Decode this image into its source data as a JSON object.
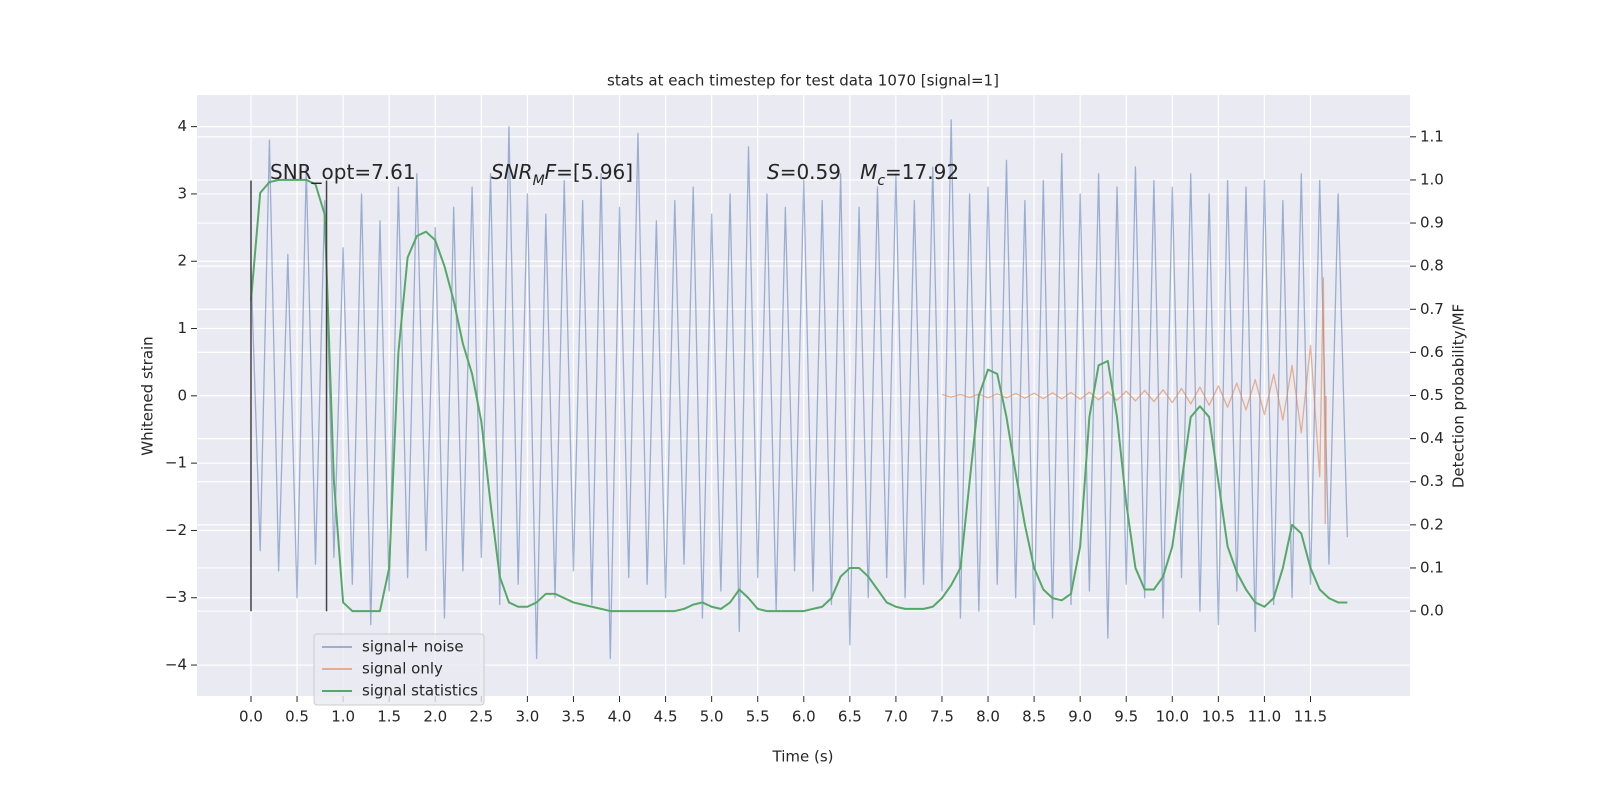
{
  "chart_data": {
    "type": "line",
    "title": "stats at each timestep for test data 1070 [signal=1]",
    "xlabel": "Time (s)",
    "ylabel": "Whitened strain",
    "y2label": "Detection probability/MF",
    "xlim": [
      -0.586,
      12.58
    ],
    "ylim": [
      -4.46,
      4.47
    ],
    "y2lim": [
      -0.197,
      1.197
    ],
    "xticks": [
      {
        "value": 0,
        "label": "0.0"
      },
      0.5,
      {
        "value": 1,
        "label": "1.0"
      },
      1.5,
      {
        "value": 2,
        "label": "2.0"
      },
      2.5,
      {
        "value": 3,
        "label": "3.0"
      },
      3.5,
      {
        "value": 4,
        "label": "4.0"
      },
      4.5,
      {
        "value": 5,
        "label": "5.0"
      },
      5.5,
      {
        "value": 6,
        "label": "6.0"
      },
      6.5,
      {
        "value": 7,
        "label": "7.0"
      },
      7.5,
      {
        "value": 8,
        "label": "8.0"
      },
      8.5,
      {
        "value": 9,
        "label": "9.0"
      },
      9.5,
      {
        "value": 10,
        "label": "10.0"
      },
      10.5,
      {
        "value": 11,
        "label": "11.0"
      },
      11.5
    ],
    "yticks": [
      {
        "value": -4,
        "label": "−4"
      },
      {
        "value": -3,
        "label": "−3"
      },
      {
        "value": -2,
        "label": "−2"
      },
      {
        "value": -1,
        "label": "−1"
      },
      0,
      1,
      2,
      3,
      4
    ],
    "y2ticks": [
      {
        "value": 0,
        "label": "0.0"
      },
      0.1,
      0.2,
      0.3,
      0.4,
      0.5,
      0.6,
      0.7,
      0.8,
      0.9,
      {
        "value": 1,
        "label": "1.0"
      },
      1.1
    ],
    "grid": true,
    "series": [
      {
        "name": "signal+ noise",
        "color": "#4c72b0",
        "opacity": 0.5,
        "x": [
          0.0,
          0.1,
          0.2,
          0.3,
          0.4,
          0.5,
          0.6,
          0.7,
          0.8,
          0.9,
          1.0,
          1.1,
          1.2,
          1.3,
          1.4,
          1.5,
          1.6,
          1.7,
          1.8,
          1.9,
          2.0,
          2.1,
          2.2,
          2.3,
          2.4,
          2.5,
          2.6,
          2.7,
          2.8,
          2.9,
          3.0,
          3.1,
          3.2,
          3.3,
          3.4,
          3.5,
          3.6,
          3.7,
          3.8,
          3.9,
          4.0,
          4.1,
          4.2,
          4.3,
          4.4,
          4.5,
          4.6,
          4.7,
          4.8,
          4.9,
          5.0,
          5.1,
          5.2,
          5.3,
          5.4,
          5.5,
          5.6,
          5.7,
          5.8,
          5.9,
          6.0,
          6.1,
          6.2,
          6.3,
          6.4,
          6.5,
          6.6,
          6.7,
          6.8,
          6.9,
          7.0,
          7.1,
          7.2,
          7.3,
          7.4,
          7.5,
          7.6,
          7.7,
          7.8,
          7.9,
          8.0,
          8.1,
          8.2,
          8.3,
          8.4,
          8.5,
          8.6,
          8.7,
          8.8,
          8.9,
          9.0,
          9.1,
          9.2,
          9.3,
          9.4,
          9.5,
          9.6,
          9.7,
          9.8,
          9.9,
          10.0,
          10.1,
          10.2,
          10.3,
          10.4,
          10.5,
          10.6,
          10.7,
          10.8,
          10.9,
          11.0,
          11.1,
          11.2,
          11.3,
          11.4,
          11.5,
          11.6,
          11.7,
          11.8,
          11.9
        ],
        "values": [
          1.9,
          -2.3,
          3.8,
          -2.6,
          2.1,
          -3.0,
          3.4,
          -2.5,
          2.9,
          -2.4,
          2.2,
          -2.8,
          3.0,
          -3.4,
          2.6,
          -2.9,
          3.1,
          -2.7,
          3.3,
          -2.3,
          2.5,
          -3.3,
          2.8,
          -2.6,
          3.1,
          -2.4,
          3.3,
          -3.1,
          4.0,
          -2.8,
          3.0,
          -3.9,
          2.7,
          -3.0,
          3.2,
          -2.6,
          2.9,
          -3.1,
          3.3,
          -3.9,
          2.8,
          -2.7,
          3.9,
          -2.8,
          2.6,
          -3.0,
          2.9,
          -2.5,
          3.1,
          -3.3,
          2.7,
          -2.9,
          3.0,
          -3.5,
          3.7,
          -2.7,
          3.0,
          -3.2,
          2.8,
          -2.6,
          3.2,
          -2.9,
          2.9,
          -3.1,
          3.3,
          -3.7,
          2.8,
          -3.0,
          3.1,
          -2.7,
          3.3,
          -3.0,
          2.9,
          -2.8,
          3.4,
          -2.9,
          4.1,
          -3.3,
          3.0,
          -3.2,
          3.1,
          -2.8,
          3.5,
          -3.0,
          2.9,
          -3.4,
          3.2,
          -3.3,
          3.6,
          -3.1,
          3.0,
          -2.9,
          3.3,
          -3.6,
          3.1,
          -2.8,
          3.4,
          -3.0,
          3.2,
          -3.3,
          3.1,
          -2.7,
          3.3,
          -3.2,
          3.0,
          -3.4,
          3.2,
          -2.9,
          3.1,
          -3.5,
          3.2,
          -3.1,
          2.9,
          -3.0,
          3.3,
          -2.8,
          3.2,
          -2.5,
          3.0,
          -2.1
        ]
      },
      {
        "name": "signal only",
        "color": "#dd8452",
        "opacity": 0.6,
        "x": [
          7.5,
          7.6,
          7.7,
          7.8,
          7.9,
          8.0,
          8.1,
          8.2,
          8.3,
          8.4,
          8.5,
          8.6,
          8.7,
          8.8,
          8.9,
          9.0,
          9.1,
          9.2,
          9.3,
          9.4,
          9.5,
          9.6,
          9.7,
          9.8,
          9.9,
          10.0,
          10.1,
          10.2,
          10.3,
          10.4,
          10.5,
          10.6,
          10.7,
          10.8,
          10.9,
          11.0,
          11.1,
          11.2,
          11.3,
          11.4,
          11.5,
          11.6,
          11.64,
          11.66,
          11.67
        ],
        "values": [
          0.02,
          -0.02,
          0.02,
          -0.025,
          0.025,
          -0.03,
          0.03,
          -0.03,
          0.035,
          -0.035,
          0.04,
          -0.04,
          0.045,
          -0.045,
          0.05,
          -0.05,
          0.055,
          -0.06,
          0.06,
          -0.065,
          0.07,
          -0.075,
          0.08,
          -0.085,
          0.09,
          -0.1,
          0.11,
          -0.12,
          0.13,
          -0.14,
          0.15,
          -0.17,
          0.19,
          -0.21,
          0.24,
          -0.28,
          0.32,
          -0.36,
          0.45,
          -0.55,
          0.75,
          -1.2,
          1.75,
          -1.9,
          0
        ]
      },
      {
        "name": "signal statistics",
        "color": "#55a868",
        "opacity": 1,
        "axis": "y2",
        "x": [
          0.0,
          0.1,
          0.2,
          0.3,
          0.4,
          0.5,
          0.6,
          0.7,
          0.8,
          0.9,
          1.0,
          1.1,
          1.2,
          1.3,
          1.4,
          1.5,
          1.6,
          1.7,
          1.8,
          1.9,
          2.0,
          2.1,
          2.2,
          2.3,
          2.4,
          2.5,
          2.6,
          2.7,
          2.8,
          2.9,
          3.0,
          3.1,
          3.2,
          3.3,
          3.4,
          3.5,
          3.6,
          3.7,
          3.8,
          3.9,
          4.0,
          4.1,
          4.2,
          4.3,
          4.4,
          4.5,
          4.6,
          4.7,
          4.8,
          4.9,
          5.0,
          5.1,
          5.2,
          5.3,
          5.4,
          5.5,
          5.6,
          5.7,
          5.8,
          5.9,
          6.0,
          6.1,
          6.2,
          6.3,
          6.4,
          6.5,
          6.6,
          6.7,
          6.8,
          6.9,
          7.0,
          7.1,
          7.2,
          7.3,
          7.4,
          7.5,
          7.6,
          7.7,
          7.8,
          7.9,
          8.0,
          8.1,
          8.2,
          8.3,
          8.4,
          8.5,
          8.6,
          8.7,
          8.8,
          8.9,
          9.0,
          9.1,
          9.2,
          9.3,
          9.4,
          9.5,
          9.6,
          9.7,
          9.8,
          9.9,
          10.0,
          10.1,
          10.2,
          10.3,
          10.4,
          10.5,
          10.6,
          10.7,
          10.8,
          10.9,
          11.0,
          11.1,
          11.2,
          11.3,
          11.4,
          11.5,
          11.6,
          11.7,
          11.8,
          11.9
        ],
        "values": [
          0.72,
          0.97,
          0.995,
          1.0,
          1.0,
          1.0,
          1.0,
          0.99,
          0.92,
          0.3,
          0.02,
          0.0,
          0.0,
          0.0,
          0.0,
          0.1,
          0.6,
          0.82,
          0.87,
          0.88,
          0.86,
          0.8,
          0.72,
          0.62,
          0.55,
          0.44,
          0.25,
          0.08,
          0.02,
          0.01,
          0.01,
          0.02,
          0.04,
          0.04,
          0.03,
          0.02,
          0.015,
          0.01,
          0.005,
          0.0,
          0.0,
          0.0,
          0.0,
          0.0,
          0.0,
          0.0,
          0.0,
          0.005,
          0.015,
          0.02,
          0.01,
          0.005,
          0.02,
          0.05,
          0.03,
          0.005,
          0.0,
          0.0,
          0.0,
          0.0,
          0.0,
          0.005,
          0.01,
          0.03,
          0.08,
          0.1,
          0.1,
          0.08,
          0.05,
          0.02,
          0.01,
          0.005,
          0.005,
          0.005,
          0.01,
          0.03,
          0.06,
          0.1,
          0.3,
          0.5,
          0.56,
          0.55,
          0.45,
          0.32,
          0.2,
          0.1,
          0.05,
          0.03,
          0.025,
          0.04,
          0.15,
          0.45,
          0.57,
          0.58,
          0.45,
          0.25,
          0.1,
          0.05,
          0.05,
          0.08,
          0.15,
          0.3,
          0.45,
          0.475,
          0.45,
          0.3,
          0.15,
          0.09,
          0.05,
          0.02,
          0.01,
          0.03,
          0.1,
          0.2,
          0.18,
          0.1,
          0.05,
          0.03,
          0.02,
          0.02
        ]
      }
    ],
    "vlines": [
      {
        "x": 0,
        "ymin": -3.2,
        "ymax": 3.2,
        "color": "#444444"
      },
      {
        "x": 0.82,
        "ymin": -3.2,
        "ymax": 3.2,
        "color": "#444444"
      }
    ],
    "annotations": [
      {
        "parts": [
          {
            "text": "SNR_opt=7.61"
          }
        ]
      },
      {
        "parts": [
          {
            "text": "SNR",
            "style": "italic"
          },
          {
            "text": "M",
            "style": "sub"
          },
          {
            "text": "F",
            "style": "italic"
          },
          {
            "text": "=[5.96]"
          }
        ]
      },
      {
        "parts": [
          {
            "text": "S",
            "style": "italic"
          },
          {
            "text": "=0.59   "
          },
          {
            "text": "M",
            "style": "italic"
          },
          {
            "text": "c",
            "style": "sub"
          },
          {
            "text": "=17.92"
          }
        ]
      }
    ],
    "legend": "lower left"
  }
}
